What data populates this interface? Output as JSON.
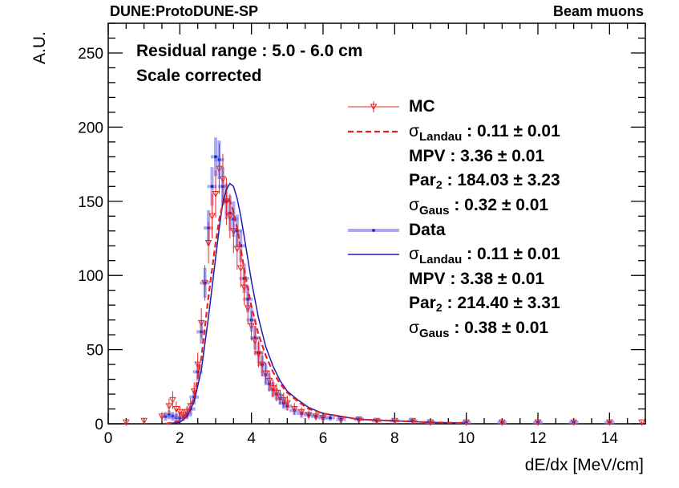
{
  "header": {
    "experiment": "DUNE:ProtoDUNE-SP",
    "sample": "Beam muons"
  },
  "annotations": {
    "line1": "Residual range : 5.0 - 6.0 cm",
    "line2": "Scale corrected"
  },
  "legend": {
    "mc": {
      "name": "MC",
      "sigma_symbol": "σ",
      "sigma_landau_sub": "Landau",
      "sigma_landau": ": 0.11 ± 0.01",
      "mpv": "MPV : 3.36 ± 0.01",
      "par_prefix": "Par",
      "par_sub": "2",
      "par_value": ": 184.03 ± 3.23",
      "sigma_gaus_sub": "Gaus",
      "sigma_gaus": ": 0.32 ± 0.01"
    },
    "data": {
      "name": "Data",
      "sigma_symbol": "σ",
      "sigma_landau_sub": "Landau",
      "sigma_landau": ": 0.11 ± 0.01",
      "mpv": "MPV : 3.38 ± 0.01",
      "par_prefix": "Par",
      "par_sub": "2",
      "par_value": ": 214.40 ± 3.31",
      "sigma_gaus_sub": "Gaus",
      "sigma_gaus": ": 0.38 ± 0.01"
    }
  },
  "colors": {
    "mc": "#e8231f",
    "data": "#7b7bf0",
    "data_fit": "#1c1cb4",
    "axis": "#000000"
  },
  "chart_data": {
    "type": "scatter",
    "xlabel": "dE/dx [MeV/cm]",
    "ylabel": "A.U.",
    "xlim": [
      0,
      15
    ],
    "ylim": [
      0,
      270
    ],
    "x_ticks": [
      0,
      2,
      4,
      6,
      8,
      10,
      12,
      14
    ],
    "x_tick_labels": [
      "0",
      "2",
      "4",
      "6",
      "8",
      "10",
      "12",
      "14"
    ],
    "y_ticks": [
      0,
      50,
      100,
      150,
      200,
      250
    ],
    "y_tick_labels": [
      "0",
      "50",
      "100",
      "150",
      "200",
      "250"
    ],
    "legend_position": "top-right",
    "series": [
      {
        "name": "Data",
        "style": "points-with-errors",
        "x": [
          1.6,
          1.7,
          1.8,
          1.9,
          2.0,
          2.1,
          2.2,
          2.3,
          2.4,
          2.5,
          2.6,
          2.7,
          2.8,
          2.9,
          3.0,
          3.1,
          3.2,
          3.3,
          3.4,
          3.5,
          3.6,
          3.7,
          3.8,
          3.9,
          4.0,
          4.1,
          4.2,
          4.3,
          4.4,
          4.5,
          4.6,
          4.7,
          4.8,
          4.9,
          5.0,
          5.2,
          5.4,
          5.6,
          5.8,
          6.0,
          6.2,
          6.5,
          7.0,
          7.5,
          8.0,
          8.5,
          9.0,
          10.0,
          11.0,
          12.0,
          13.0,
          14.0
        ],
        "y": [
          5,
          6,
          5,
          4,
          4,
          5,
          6,
          10,
          18,
          35,
          62,
          95,
          132,
          160,
          180,
          178,
          160,
          150,
          142,
          138,
          130,
          120,
          98,
          84,
          70,
          58,
          48,
          40,
          33,
          27,
          23,
          20,
          17,
          14,
          12,
          9,
          7,
          6,
          5,
          4,
          4,
          3,
          3,
          2,
          2,
          2,
          1,
          1,
          1,
          1,
          1,
          1
        ],
        "errors": [
          3,
          3,
          3,
          3,
          3,
          3,
          3,
          4,
          5,
          6,
          8,
          10,
          12,
          13,
          13,
          13,
          13,
          12,
          12,
          12,
          11,
          11,
          10,
          9,
          8,
          8,
          7,
          6,
          6,
          5,
          5,
          4,
          4,
          4,
          3,
          3,
          3,
          2,
          2,
          2,
          2,
          2,
          2,
          1,
          1,
          1,
          1,
          1,
          1,
          1,
          1,
          1
        ]
      },
      {
        "name": "MC",
        "style": "open-triangles-with-errors",
        "x": [
          0.5,
          1.0,
          1.5,
          1.7,
          1.8,
          1.9,
          2.0,
          2.1,
          2.2,
          2.3,
          2.4,
          2.5,
          2.6,
          2.7,
          2.8,
          2.9,
          3.0,
          3.1,
          3.2,
          3.3,
          3.4,
          3.5,
          3.6,
          3.7,
          3.8,
          3.9,
          4.0,
          4.1,
          4.2,
          4.3,
          4.4,
          4.5,
          4.6,
          4.7,
          4.8,
          4.9,
          5.0,
          5.2,
          5.4,
          5.6,
          5.8,
          6.0,
          6.5,
          7.0,
          7.5,
          8.0,
          8.5,
          9.0,
          10.0,
          11.0,
          12.0,
          13.0,
          14.0,
          14.9
        ],
        "y": [
          1,
          2,
          5,
          12,
          16,
          10,
          8,
          6,
          8,
          12,
          22,
          40,
          68,
          95,
          122,
          140,
          155,
          172,
          165,
          150,
          140,
          130,
          118,
          105,
          92,
          78,
          66,
          56,
          47,
          40,
          34,
          29,
          24,
          21,
          18,
          16,
          14,
          10,
          8,
          6,
          5,
          4,
          3,
          3,
          2,
          2,
          2,
          1,
          1,
          1,
          1,
          1,
          1,
          1
        ],
        "errors": [
          1,
          2,
          3,
          5,
          6,
          5,
          4,
          4,
          4,
          5,
          6,
          8,
          10,
          12,
          14,
          15,
          16,
          17,
          17,
          16,
          15,
          15,
          14,
          13,
          12,
          11,
          10,
          10,
          9,
          8,
          7,
          7,
          6,
          6,
          5,
          5,
          5,
          4,
          3,
          3,
          3,
          2,
          2,
          2,
          2,
          2,
          1,
          1,
          1,
          1,
          1,
          1,
          1,
          1
        ]
      },
      {
        "name": "Data fit",
        "style": "line",
        "x": [
          1.6,
          2.0,
          2.2,
          2.4,
          2.6,
          2.8,
          3.0,
          3.1,
          3.2,
          3.3,
          3.4,
          3.5,
          3.6,
          3.7,
          3.8,
          3.9,
          4.0,
          4.2,
          4.4,
          4.6,
          4.8,
          5.0,
          5.3,
          5.6,
          6.0,
          6.5,
          7.0,
          8.0,
          9.0,
          10.0
        ],
        "y": [
          0,
          1,
          5,
          15,
          36,
          72,
          112,
          132,
          149,
          158,
          162,
          160,
          152,
          140,
          126,
          111,
          96,
          71,
          52,
          39,
          29,
          22,
          16,
          11,
          7,
          5,
          3,
          2,
          1,
          0.5
        ]
      },
      {
        "name": "MC fit",
        "style": "dashed-line",
        "x": [
          1.6,
          2.0,
          2.2,
          2.4,
          2.6,
          2.8,
          3.0,
          3.1,
          3.2,
          3.3,
          3.4,
          3.5,
          3.6,
          3.7,
          3.8,
          3.9,
          4.0,
          4.2,
          4.4,
          4.6,
          4.8,
          5.0,
          5.3,
          5.6,
          6.0,
          6.5,
          7.0,
          8.0,
          9.0,
          10.0
        ],
        "y": [
          0,
          2,
          6,
          18,
          44,
          86,
          122,
          138,
          148,
          152,
          150,
          143,
          132,
          118,
          104,
          91,
          79,
          60,
          46,
          35,
          27,
          21,
          15,
          10,
          7,
          5,
          3,
          2,
          1,
          0.5
        ]
      }
    ]
  }
}
